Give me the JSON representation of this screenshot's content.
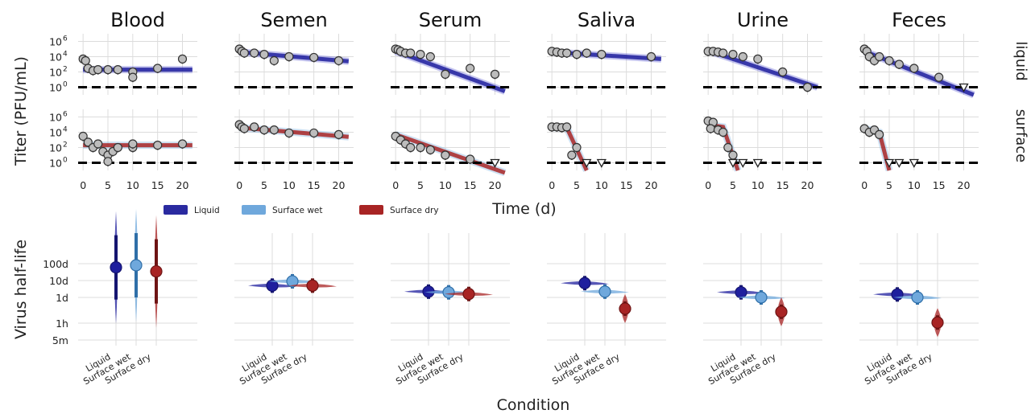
{
  "figure": {
    "y_label_top": "Titer (PFU/mL)",
    "x_label_top": "Time (d)",
    "y_label_bottom": "Virus half-life",
    "x_label_bottom": "Condition",
    "row_labels": [
      "liquid",
      "surface"
    ]
  },
  "legend": [
    {
      "label": "Liquid",
      "color": "#2a2aa0"
    },
    {
      "label": "Surface wet",
      "color": "#6fa8dc"
    },
    {
      "label": "Surface dry",
      "color": "#a82424"
    }
  ],
  "colors": {
    "liquid": "#1f1f9e",
    "surface_wet": "#6fa8dc",
    "surface_dry": "#a82424",
    "point_fill": "#bdbdbd",
    "grid": "#dcdcdc",
    "detection_limit": "#000000"
  },
  "chart_data": [
    {
      "type": "scatter",
      "panel": "titer",
      "x_ticks": [
        0,
        5,
        10,
        15,
        20
      ],
      "y_ticks": [
        {
          "base": "10",
          "exp": "6"
        },
        {
          "base": "10",
          "exp": "4"
        },
        {
          "base": "10",
          "exp": "2"
        },
        {
          "base": "10",
          "exp": "0"
        }
      ],
      "xlim": [
        -1,
        23
      ],
      "ylim_log10": [
        -1,
        7
      ],
      "y_scale": "log",
      "detection_limit": 1,
      "fluids": [
        {
          "title": "Blood",
          "liquid": {
            "points": [
              [
                0,
                5000
              ],
              [
                0.5,
                3000
              ],
              [
                1,
                300
              ],
              [
                2,
                150
              ],
              [
                3,
                200
              ],
              [
                5,
                200
              ],
              [
                7,
                200
              ],
              [
                10,
                100
              ],
              [
                10,
                20
              ],
              [
                15,
                300
              ],
              [
                20,
                5000
              ]
            ],
            "fit": [
              [
                0,
                200
              ],
              [
                22,
                200
              ]
            ]
          },
          "surface": {
            "points": [
              [
                0,
                3000
              ],
              [
                1,
                500
              ],
              [
                2,
                100
              ],
              [
                3,
                300
              ],
              [
                4,
                30
              ],
              [
                5,
                10
              ],
              [
                5,
                1.5
              ],
              [
                6,
                30
              ],
              [
                7,
                100
              ],
              [
                10,
                100
              ],
              [
                10,
                300
              ],
              [
                15,
                200
              ],
              [
                20,
                300
              ]
            ],
            "fit": [
              [
                0,
                200
              ],
              [
                22,
                200
              ]
            ]
          }
        },
        {
          "title": "Semen",
          "liquid": {
            "points": [
              [
                0,
                100000
              ],
              [
                0.5,
                50000
              ],
              [
                1,
                30000
              ],
              [
                3,
                30000
              ],
              [
                5,
                20000
              ],
              [
                7,
                3000
              ],
              [
                10,
                10000
              ],
              [
                15,
                8000
              ],
              [
                20,
                3000
              ]
            ],
            "fit": [
              [
                0,
                40000
              ],
              [
                22,
                2500
              ]
            ]
          },
          "surface": {
            "points": [
              [
                0,
                100000
              ],
              [
                0.5,
                50000
              ],
              [
                1,
                30000
              ],
              [
                3,
                50000
              ],
              [
                5,
                20000
              ],
              [
                7,
                20000
              ],
              [
                10,
                8000
              ],
              [
                15,
                8000
              ],
              [
                20,
                5000
              ]
            ],
            "fit": [
              [
                0,
                40000
              ],
              [
                22,
                2500
              ]
            ]
          }
        },
        {
          "title": "Serum",
          "liquid": {
            "points": [
              [
                0,
                100000
              ],
              [
                0.5,
                80000
              ],
              [
                1,
                50000
              ],
              [
                2,
                30000
              ],
              [
                3,
                30000
              ],
              [
                5,
                20000
              ],
              [
                7,
                10000
              ],
              [
                10,
                50
              ],
              [
                15,
                300
              ],
              [
                20,
                50
              ]
            ],
            "fit": [
              [
                0,
                50000
              ],
              [
                22,
                0.3
              ]
            ]
          },
          "surface": {
            "points": [
              [
                0,
                3000
              ],
              [
                1,
                1000
              ],
              [
                2,
                300
              ],
              [
                3,
                100
              ],
              [
                5,
                100
              ],
              [
                7,
                50
              ],
              [
                10,
                10
              ],
              [
                15,
                3
              ]
            ],
            "non_detects": [
              20
            ],
            "fit": [
              [
                0,
                5000
              ],
              [
                22,
                0.05
              ]
            ]
          }
        },
        {
          "title": "Saliva",
          "liquid": {
            "points": [
              [
                0,
                50000
              ],
              [
                1,
                40000
              ],
              [
                2,
                30000
              ],
              [
                3,
                30000
              ],
              [
                5,
                20000
              ],
              [
                7,
                30000
              ],
              [
                10,
                20000
              ],
              [
                20,
                10000
              ]
            ],
            "fit": [
              [
                0,
                40000
              ],
              [
                22,
                5000
              ]
            ]
          },
          "surface": {
            "points": [
              [
                0,
                50000
              ],
              [
                1,
                50000
              ],
              [
                2,
                40000
              ],
              [
                3,
                50000
              ],
              [
                4,
                10
              ],
              [
                5,
                100
              ]
            ],
            "non_detects": [
              7,
              10
            ],
            "fit": [
              [
                0,
                40000
              ],
              [
                3,
                40000
              ],
              [
                7,
                0.1
              ]
            ]
          }
        },
        {
          "title": "Urine",
          "liquid": {
            "points": [
              [
                0,
                50000
              ],
              [
                1,
                50000
              ],
              [
                2,
                40000
              ],
              [
                3,
                30000
              ],
              [
                5,
                20000
              ],
              [
                7,
                10000
              ],
              [
                10,
                5000
              ],
              [
                15,
                100
              ],
              [
                20,
                1
              ]
            ],
            "fit": [
              [
                0,
                60000
              ],
              [
                22,
                1
              ]
            ]
          },
          "surface": {
            "points": [
              [
                0,
                300000
              ],
              [
                1,
                200000
              ],
              [
                0.5,
                30000
              ],
              [
                2,
                20000
              ],
              [
                3,
                10000
              ],
              [
                4,
                100
              ],
              [
                5,
                10
              ]
            ],
            "non_detects": [
              5,
              7,
              10
            ],
            "fit": [
              [
                0,
                100000
              ],
              [
                3,
                50000
              ],
              [
                6,
                0.1
              ]
            ]
          }
        },
        {
          "title": "Feces",
          "liquid": {
            "points": [
              [
                0,
                100000
              ],
              [
                0.5,
                50000
              ],
              [
                1,
                10000
              ],
              [
                2,
                3000
              ],
              [
                3,
                10000
              ],
              [
                5,
                3000
              ],
              [
                7,
                1000
              ],
              [
                10,
                300
              ],
              [
                15,
                20
              ]
            ],
            "non_detects": [
              20
            ],
            "fit": [
              [
                0,
                50000
              ],
              [
                22,
                0.1
              ]
            ]
          },
          "surface": {
            "points": [
              [
                0,
                30000
              ],
              [
                1,
                10000
              ],
              [
                2,
                20000
              ],
              [
                3,
                5000
              ]
            ],
            "non_detects": [
              5,
              7,
              10
            ],
            "fit": [
              [
                0,
                30000
              ],
              [
                3,
                10000
              ],
              [
                5,
                0.1
              ]
            ]
          }
        }
      ]
    },
    {
      "type": "violin",
      "panel": "half-life",
      "y_ticks": [
        "100d",
        "10d",
        "1d",
        "1h",
        "5m"
      ],
      "y_scale": "log",
      "categories": [
        "Liquid",
        "Surface wet",
        "Surface dry"
      ],
      "fluids": [
        {
          "title": "Blood",
          "half_life_days": {
            "Liquid": 60,
            "Surface wet": 80,
            "Surface dry": 35
          }
        },
        {
          "title": "Semen",
          "half_life_days": {
            "Liquid": 5,
            "Surface wet": 9,
            "Surface dry": 5
          }
        },
        {
          "title": "Serum",
          "half_life_days": {
            "Liquid": 2.2,
            "Surface wet": 2.0,
            "Surface dry": 1.6
          }
        },
        {
          "title": "Saliva",
          "half_life_days": {
            "Liquid": 7,
            "Surface wet": 2.2,
            "Surface dry": 0.25
          }
        },
        {
          "title": "Urine",
          "half_life_days": {
            "Liquid": 2,
            "Surface wet": 1,
            "Surface dry": 0.17
          }
        },
        {
          "title": "Feces",
          "half_life_days": {
            "Liquid": 1.5,
            "Surface wet": 1,
            "Surface dry": 0.045
          }
        }
      ]
    }
  ]
}
